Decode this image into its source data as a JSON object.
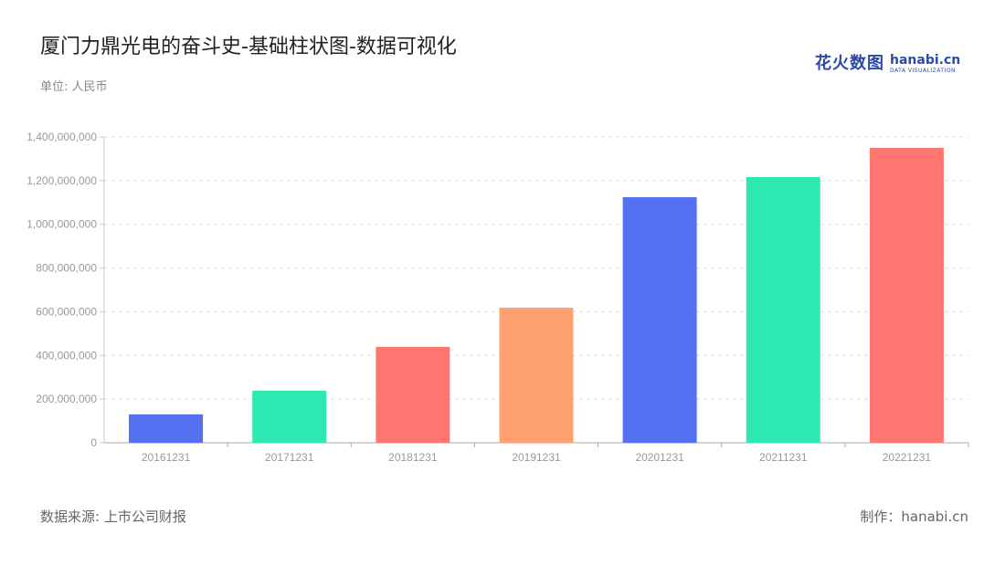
{
  "header": {
    "title": "厦门力鼎光电的奋斗史-基础柱状图-数据可视化",
    "unit": "单位: 人民币"
  },
  "logo": {
    "cn": "花火数图",
    "en": "hanabi.cn",
    "sub": "DATA VISUALIZATION"
  },
  "footer": {
    "source": "数据来源: 上市公司财报",
    "maker": "制作：hanabi.cn"
  },
  "chart_data": {
    "type": "bar",
    "categories": [
      "20161231",
      "20171231",
      "20181231",
      "20191231",
      "20201231",
      "20211231",
      "20221231"
    ],
    "values": [
      130000000,
      238000000,
      439000000,
      618000000,
      1124000000,
      1216000000,
      1350000000
    ],
    "colors": [
      "#5470f0",
      "#2de8b0",
      "#ff7670",
      "#ffa070",
      "#5470f0",
      "#2de8b0",
      "#ff7670"
    ],
    "ylim": [
      0,
      1400000000
    ],
    "yticks": [
      "0",
      "200,000,000",
      "400,000,000",
      "600,000,000",
      "800,000,000",
      "1,000,000,000",
      "1,200,000,000",
      "1,400,000,000"
    ],
    "grid": true
  }
}
